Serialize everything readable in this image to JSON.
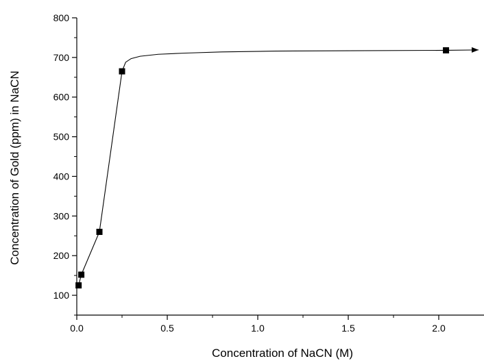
{
  "chart_data": {
    "type": "scatter",
    "xlabel": "Concentration of NaCN (M)",
    "ylabel": "Concentration of Gold (ppm) in NaCN",
    "xlim": [
      0,
      2.25
    ],
    "ylim": [
      50,
      800
    ],
    "x_ticks": [
      0.0,
      0.5,
      1.0,
      1.5,
      2.0
    ],
    "x_tick_labels": [
      "0.0",
      "0.5",
      "1.0",
      "1.5",
      "2.0"
    ],
    "y_ticks": [
      100,
      200,
      300,
      400,
      500,
      600,
      700,
      800
    ],
    "y_tick_labels": [
      "100",
      "200",
      "300",
      "400",
      "500",
      "600",
      "700",
      "800"
    ],
    "grid": false,
    "series": [
      {
        "marker": "square",
        "color": "#000000",
        "x": [
          0.01,
          0.025,
          0.125,
          0.25,
          2.04
        ],
        "y": [
          125,
          152,
          260,
          665,
          718
        ]
      }
    ],
    "curve": {
      "x": [
        0.25,
        0.27,
        0.3,
        0.35,
        0.45,
        0.6,
        0.8,
        1.1,
        1.5,
        2.04,
        2.22
      ],
      "y": [
        665,
        688,
        697,
        703,
        708,
        711,
        714,
        716,
        717,
        718,
        719
      ],
      "arrow_end": true
    }
  }
}
